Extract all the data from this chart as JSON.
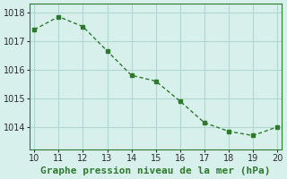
{
  "x": [
    10,
    11,
    12,
    13,
    14,
    15,
    16,
    17,
    18,
    19,
    20
  ],
  "y": [
    1017.4,
    1017.85,
    1017.5,
    1016.65,
    1015.8,
    1015.6,
    1014.9,
    1014.15,
    1013.85,
    1013.7,
    1014.0
  ],
  "xlim": [
    9.8,
    20.2
  ],
  "ylim": [
    1013.2,
    1018.3
  ],
  "xticks": [
    10,
    11,
    12,
    13,
    14,
    15,
    16,
    17,
    18,
    19,
    20
  ],
  "yticks": [
    1014,
    1015,
    1016,
    1017,
    1018
  ],
  "xlabel": "Graphe pression niveau de la mer (hPa)",
  "line_color": "#2d7a2d",
  "marker_color": "#2d7a2d",
  "bg_color": "#d8f0ec",
  "grid_color": "#b0d8d0",
  "tick_fontsize": 7,
  "label_fontsize": 8
}
